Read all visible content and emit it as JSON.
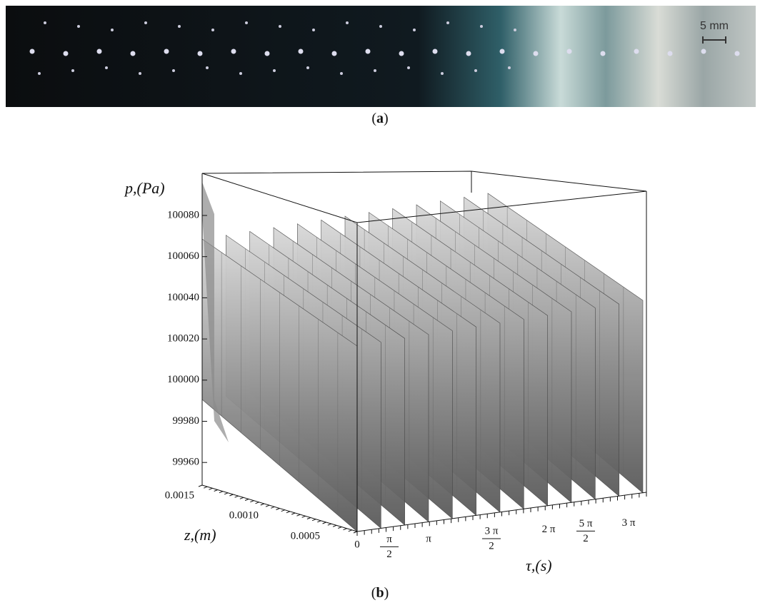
{
  "panel_a": {
    "scale_bar": "5 mm",
    "caption_paren_open": "(",
    "caption_letter": "a",
    "caption_paren_close": ")"
  },
  "panel_b": {
    "p_label": "p,(Pa)",
    "p_ticks": [
      100080,
      100060,
      100040,
      100020,
      100000,
      99980,
      99960
    ],
    "z_label": "z,(m)",
    "z_ticks": [
      "0.0015",
      "0.0010",
      "0.0005"
    ],
    "tau_label": "τ,(s)",
    "tau_ticks": [
      "0",
      {
        "numerator": "π",
        "denominator": "2"
      },
      "π",
      {
        "numerator": "3 π",
        "denominator": "2"
      },
      "2 π",
      {
        "numerator": "5 π",
        "denominator": "2"
      },
      "3 π"
    ],
    "caption_paren_open": "(",
    "caption_letter": "b",
    "caption_paren_close": ")"
  }
}
